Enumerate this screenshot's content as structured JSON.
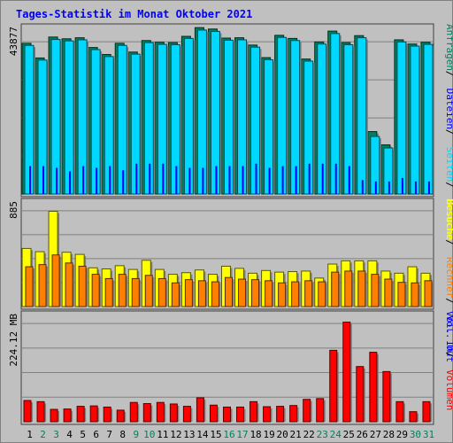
{
  "chart_data": {
    "type": "bar",
    "title": "Tages-Statistik im Monat Oktober 2021",
    "categories": [
      "1",
      "2",
      "3",
      "4",
      "5",
      "6",
      "7",
      "8",
      "9",
      "10",
      "11",
      "12",
      "13",
      "14",
      "15",
      "16",
      "17",
      "18",
      "19",
      "20",
      "21",
      "22",
      "23",
      "24",
      "25",
      "26",
      "27",
      "28",
      "29",
      "30",
      "31"
    ],
    "weekend_days": [
      "2",
      "3",
      "9",
      "10",
      "16",
      "17",
      "23",
      "24",
      "30",
      "31"
    ],
    "panels": [
      {
        "name": "top",
        "y_tick_label": "43877",
        "y_tick_value": 43877,
        "ylim": [
          0,
          48000
        ],
        "legend": [
          "Anfragen",
          "Dateien",
          "Seiten",
          "Besuche"
        ],
        "series": [
          {
            "name": "Anfragen",
            "color": "#008060",
            "values": [
              43200,
              39000,
              45000,
              44500,
              44800,
              42000,
              40000,
              43200,
              40700,
              44000,
              43500,
              43400,
              45200,
              47700,
              47300,
              44700,
              44800,
              42700,
              39100,
              45500,
              44600,
              38700,
              43600,
              46700,
              43400,
              45400,
              17900,
              14100,
              44200,
              43000,
              43500
            ]
          },
          {
            "name": "Dateien",
            "color": "#00d8ff",
            "values": [
              42600,
              38400,
              44300,
              43900,
              44200,
              41400,
              39400,
              42600,
              40100,
              43400,
              42900,
              42800,
              44600,
              47000,
              46600,
              44100,
              44200,
              42100,
              38500,
              44900,
              44000,
              38100,
              43000,
              46000,
              42800,
              44800,
              16500,
              13200,
              43600,
              42400,
              42900
            ]
          },
          {
            "name": "Seiten",
            "color": "#0000ff",
            "values": [
              8000,
              8000,
              7500,
              6500,
              8000,
              7500,
              8000,
              6800,
              8700,
              8700,
              8700,
              8000,
              7500,
              7500,
              8000,
              8000,
              8000,
              8700,
              7500,
              8000,
              8000,
              8700,
              8700,
              8700,
              8000,
              4000,
              3600,
              3600,
              4600,
              3600,
              3600
            ]
          }
        ]
      },
      {
        "name": "middle",
        "y_tick_label": "885",
        "y_tick_value": 885,
        "ylim": [
          0,
          980
        ],
        "legend": [
          "Besuche",
          "Rechner",
          "Vol. Out"
        ],
        "series": [
          {
            "name": "Besuche",
            "color": "#ffff00",
            "values": [
              540,
              510,
              885,
              505,
              485,
              360,
              350,
              380,
              345,
              430,
              345,
              300,
              315,
              340,
              300,
              375,
              355,
              310,
              335,
              320,
              325,
              330,
              265,
              395,
              425,
              425,
              425,
              330,
              310,
              370,
              310
            ]
          },
          {
            "name": "Rechner",
            "color": "#ff8000",
            "values": [
              370,
              390,
              480,
              405,
              375,
              300,
              260,
              300,
              260,
              290,
              260,
              220,
              250,
              240,
              230,
              270,
              255,
              250,
              240,
              220,
              230,
              240,
              230,
              320,
              330,
              330,
              300,
              255,
              225,
              220,
              240
            ]
          }
        ]
      },
      {
        "name": "bottom",
        "y_tick_label": "224.12 MB",
        "y_tick_value": 224.12,
        "ylim": [
          0,
          280
        ],
        "legend": [
          "Vol. In",
          "Volumen"
        ],
        "series": [
          {
            "name": "Volumen",
            "color": "#ff0000",
            "values": [
              55,
              52,
              32,
              33,
              40,
              41,
              38,
              30,
              50,
              47,
              50,
              46,
              40,
              62,
              43,
              38,
              38,
              52,
              39,
              40,
              42,
              58,
              60,
              185,
              258,
              143,
              180,
              130,
              52,
              26,
              52
            ]
          }
        ]
      }
    ]
  }
}
